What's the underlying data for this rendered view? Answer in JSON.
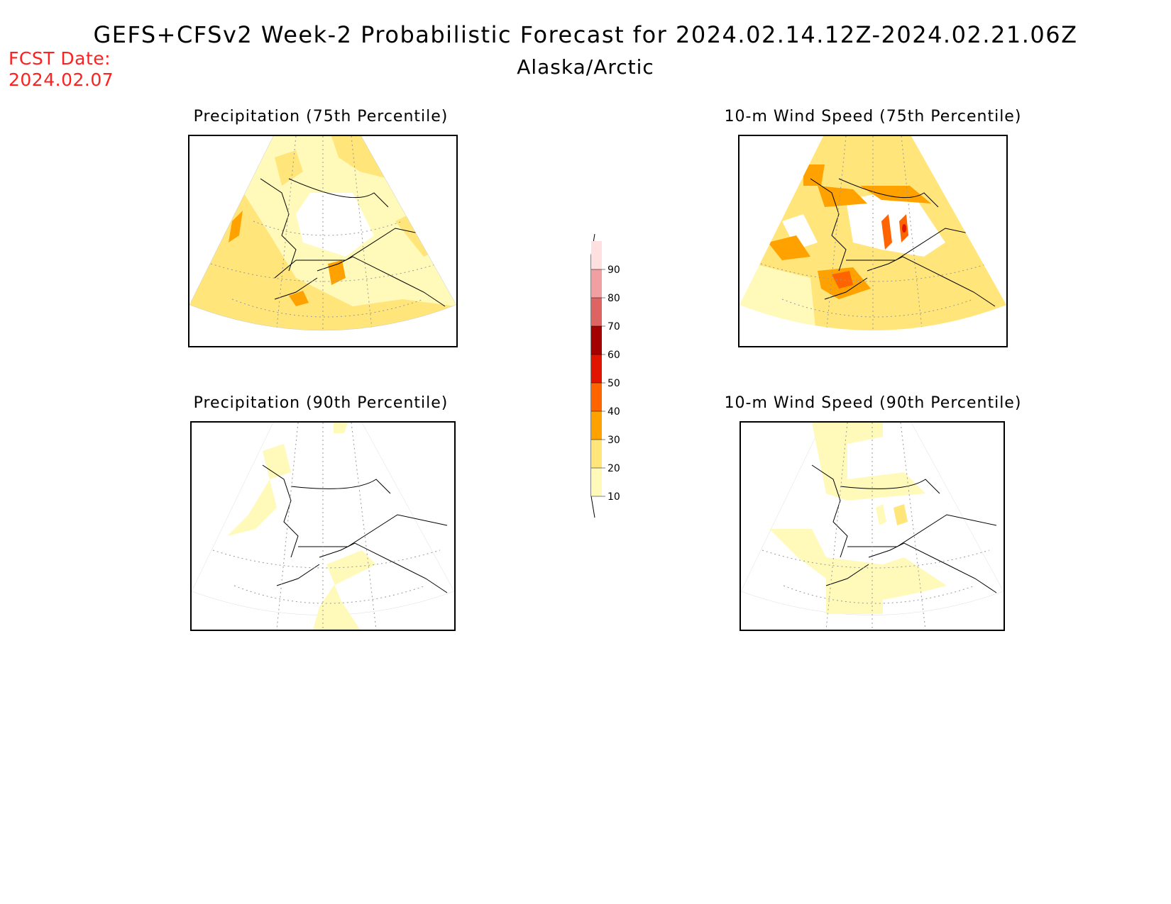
{
  "header": {
    "title": "GEFS+CFSv2 Week-2 Probabilistic Forecast for 2024.02.14.12Z-2024.02.21.06Z",
    "region": "Alaska/Arctic",
    "fcst_label": "FCST Date:",
    "fcst_date": "2024.02.07"
  },
  "colors": {
    "c10": "#fffaba",
    "c20": "#ffe57a",
    "c30": "#ffa200",
    "c40": "#ff6400",
    "c50": "#e11400",
    "c60": "#a50000",
    "c70": "#de6464",
    "c80": "#f0a0a0",
    "c90": "#ffe0e0",
    "annotation_red": "#ff2020"
  },
  "colorbar": {
    "levels": [
      10,
      20,
      30,
      40,
      50,
      60,
      70,
      80,
      90
    ],
    "labels": [
      "10",
      "20",
      "30",
      "40",
      "50",
      "60",
      "70",
      "80",
      "90"
    ]
  },
  "panels": [
    {
      "id": "precip75",
      "title": "Precipitation (75th Percentile)"
    },
    {
      "id": "wind75",
      "title": "10-m Wind Speed (75th Percentile)"
    },
    {
      "id": "precip90",
      "title": "Precipitation (90th Percentile)"
    },
    {
      "id": "wind90",
      "title": "10-m Wind Speed (90th Percentile)"
    }
  ]
}
